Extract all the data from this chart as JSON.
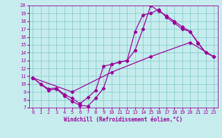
{
  "xlabel": "Windchill (Refroidissement éolien,°C)",
  "xlim": [
    -0.5,
    23.5
  ],
  "ylim": [
    7,
    20
  ],
  "xticks": [
    0,
    1,
    2,
    3,
    4,
    5,
    6,
    7,
    8,
    9,
    10,
    11,
    12,
    13,
    14,
    15,
    16,
    17,
    18,
    19,
    20,
    21,
    22,
    23
  ],
  "yticks": [
    7,
    8,
    9,
    10,
    11,
    12,
    13,
    14,
    15,
    16,
    17,
    18,
    19,
    20
  ],
  "bg_color": "#c6ecee",
  "line_color": "#990099",
  "grid_color": "#88cccc",
  "line1_x": [
    0,
    1,
    2,
    3,
    4,
    5,
    6,
    7,
    8,
    9,
    10,
    11,
    12,
    13,
    14,
    15,
    16,
    17,
    18,
    19,
    20,
    21,
    22,
    23
  ],
  "line1_y": [
    10.8,
    10.0,
    9.2,
    9.4,
    8.5,
    7.8,
    7.3,
    7.2,
    8.2,
    9.5,
    12.5,
    12.8,
    13.0,
    16.7,
    18.8,
    19.0,
    19.5,
    18.5,
    17.8,
    17.0,
    16.7,
    15.2,
    14.0,
    13.5
  ],
  "line2_x": [
    0,
    1,
    2,
    3,
    4,
    5,
    6,
    7,
    8,
    9,
    10,
    11,
    12,
    13,
    14,
    15,
    16,
    17,
    18,
    19,
    20,
    21,
    22,
    23
  ],
  "line2_y": [
    10.8,
    10.0,
    9.4,
    9.5,
    8.7,
    8.2,
    7.5,
    8.3,
    9.2,
    12.3,
    12.5,
    12.8,
    13.0,
    14.3,
    17.0,
    20.0,
    19.3,
    18.7,
    18.0,
    17.3,
    16.7,
    15.3,
    14.0,
    13.5
  ],
  "line3_x": [
    0,
    5,
    10,
    15,
    20,
    23
  ],
  "line3_y": [
    10.8,
    9.0,
    11.5,
    13.5,
    15.3,
    13.5
  ],
  "marker": "D",
  "markersize": 2.2,
  "linewidth": 0.9,
  "tick_fontsize": 5.0,
  "xlabel_fontsize": 5.5
}
